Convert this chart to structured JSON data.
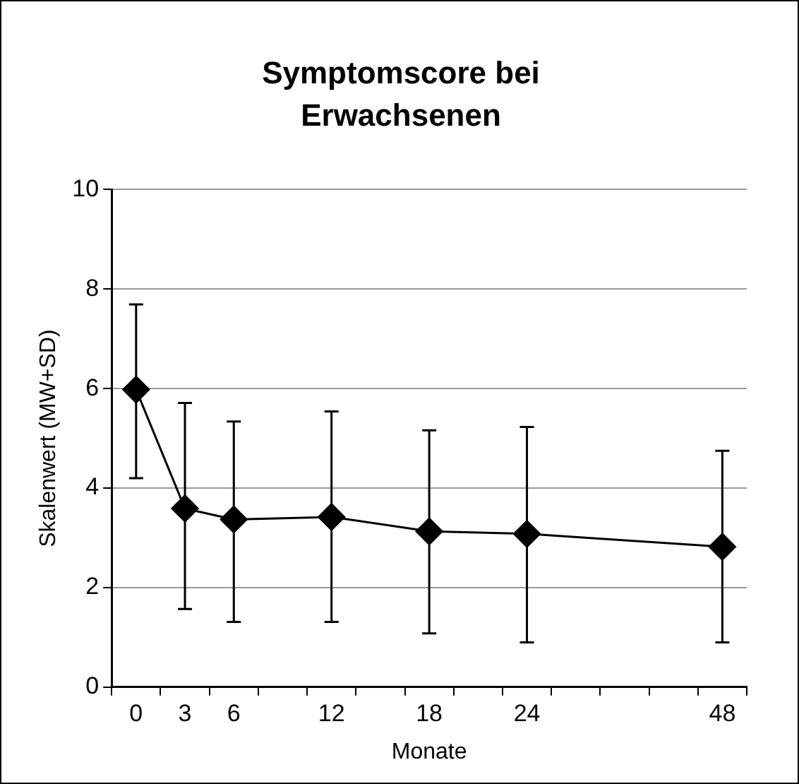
{
  "chart_data": {
    "type": "line",
    "title": "Symptomscore bei Erwachsenen",
    "xlabel": "Monate",
    "ylabel": "Skalenwert (MW+SD)",
    "categories": [
      "0",
      "3",
      "6",
      null,
      "12",
      null,
      "18",
      null,
      "24",
      null,
      null,
      null,
      "48"
    ],
    "series": [
      {
        "color": "#000000",
        "values": [
          5.98,
          3.59,
          3.37,
          null,
          3.42,
          null,
          3.13,
          null,
          3.08,
          null,
          null,
          null,
          2.82
        ],
        "errors": [
          [
            4.2,
            7.69
          ],
          [
            1.57,
            5.71
          ],
          [
            1.31,
            5.34
          ],
          null,
          [
            1.31,
            5.54
          ],
          null,
          [
            1.08,
            5.16
          ],
          null,
          [
            0.9,
            5.23
          ],
          null,
          null,
          null,
          [
            0.9,
            4.75
          ]
        ]
      }
    ],
    "ylim": [
      0,
      10
    ],
    "yticks": [
      0,
      2,
      4,
      6,
      8,
      10
    ],
    "grid": "y",
    "legend": false,
    "marker": "diamond",
    "line_style": "solid"
  }
}
